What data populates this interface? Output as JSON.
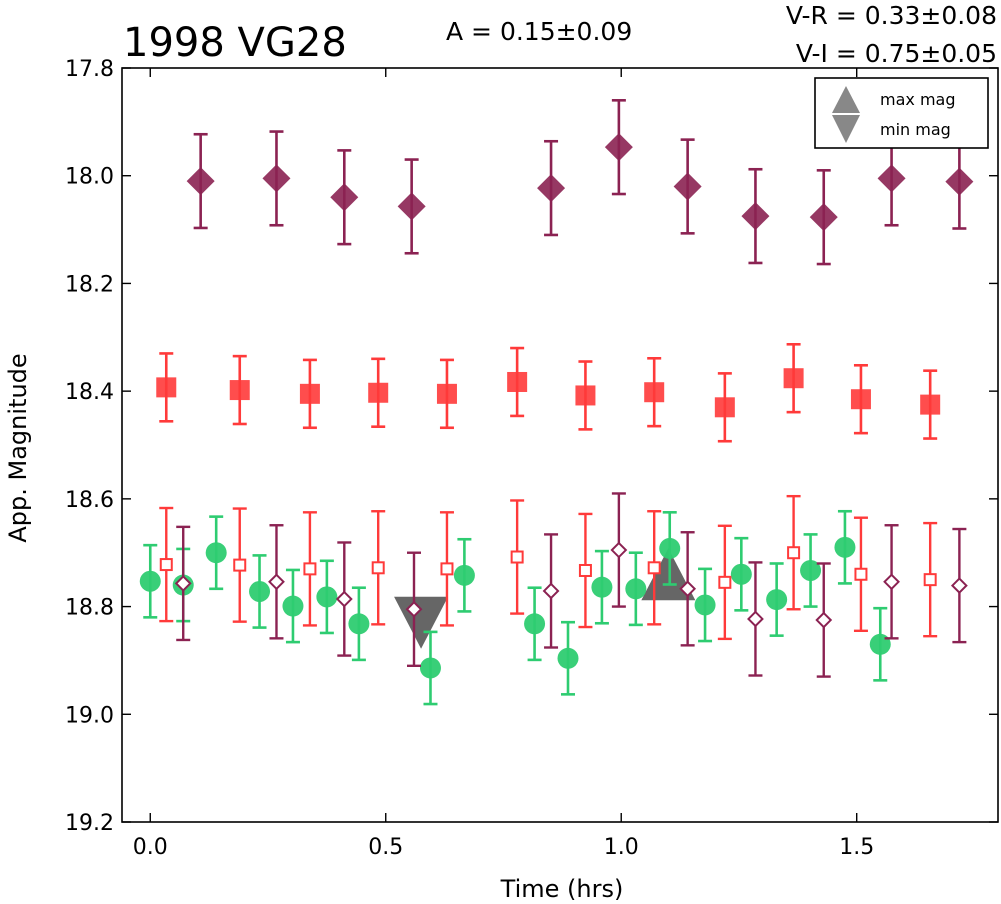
{
  "title": "1998 VG28",
  "annotations": {
    "amplitude": "A  = 0.15±0.09",
    "v_r": "V-R = 0.33±0.08",
    "v_i": "V-I  = 0.75±0.05"
  },
  "xlabel": "Time (hrs)",
  "ylabel": "App. Magnitude",
  "legend": {
    "max": "max mag",
    "min": "min mag"
  },
  "chart_data": {
    "type": "scatter",
    "title": "1998 VG28",
    "xlabel": "Time (hrs)",
    "ylabel": "App. Magnitude",
    "xlim": [
      -0.06,
      1.8
    ],
    "ylim": [
      19.2,
      17.8
    ],
    "y_inverted": true,
    "xticks": [
      "0.0",
      "0.5",
      "1.0",
      "1.5"
    ],
    "yticks": [
      "17.8",
      "18.0",
      "18.2",
      "18.4",
      "18.6",
      "18.8",
      "19.0",
      "19.2"
    ],
    "legend_position": "top-right",
    "grid": false,
    "series": [
      {
        "marker": "diamond",
        "filled": true,
        "color": "#8b2252",
        "err": 0.087,
        "x": [
          0.107,
          0.268,
          0.412,
          0.555,
          0.851,
          0.995,
          1.141,
          1.285,
          1.43,
          1.574,
          1.718
        ],
        "y": [
          18.01,
          18.005,
          18.04,
          18.057,
          18.023,
          17.947,
          18.02,
          18.075,
          18.077,
          18.005,
          18.011
        ]
      },
      {
        "marker": "square",
        "filled": true,
        "color": "#ff3a3a",
        "err": 0.063,
        "x": [
          0.034,
          0.19,
          0.339,
          0.484,
          0.63,
          0.779,
          0.924,
          1.07,
          1.22,
          1.366,
          1.509,
          1.656
        ],
        "y": [
          18.393,
          18.398,
          18.405,
          18.403,
          18.405,
          18.383,
          18.408,
          18.402,
          18.43,
          18.376,
          18.415,
          18.425
        ]
      },
      {
        "marker": "circle",
        "filled": true,
        "color": "#2ecc71",
        "err": 0.067,
        "x": [
          0.0,
          0.07,
          0.14,
          0.232,
          0.303,
          0.375,
          0.443,
          0.595,
          0.667,
          0.816,
          0.887,
          0.959,
          1.031,
          1.103,
          1.178,
          1.255,
          1.33,
          1.402,
          1.475,
          1.55
        ],
        "y": [
          18.753,
          18.76,
          18.7,
          18.772,
          18.799,
          18.782,
          18.832,
          18.914,
          18.742,
          18.832,
          18.896,
          18.764,
          18.767,
          18.692,
          18.797,
          18.74,
          18.787,
          18.733,
          18.69,
          18.87
        ]
      },
      {
        "marker": "square",
        "filled": false,
        "color": "#ff3a3a",
        "err": 0.105,
        "x": [
          0.034,
          0.19,
          0.339,
          0.484,
          0.63,
          0.779,
          0.924,
          1.07,
          1.22,
          1.366,
          1.509,
          1.656
        ],
        "y": [
          18.722,
          18.723,
          18.73,
          18.728,
          18.73,
          18.708,
          18.733,
          18.728,
          18.755,
          18.7,
          18.74,
          18.75
        ]
      },
      {
        "marker": "diamond",
        "filled": false,
        "color": "#8b2252",
        "err": 0.105,
        "x": [
          0.07,
          0.268,
          0.412,
          0.56,
          0.851,
          0.995,
          1.141,
          1.285,
          1.43,
          1.574,
          1.718
        ],
        "y": [
          18.757,
          18.754,
          18.786,
          18.805,
          18.771,
          18.695,
          18.767,
          18.823,
          18.825,
          18.754,
          18.761
        ]
      }
    ],
    "extrema": {
      "max": {
        "x": 1.1,
        "y": 18.74,
        "label": "max mag",
        "marker": "triangle-up",
        "color": "#555555"
      },
      "min": {
        "x": 0.575,
        "y": 18.83,
        "label": "min mag",
        "marker": "triangle-down",
        "color": "#555555"
      }
    }
  }
}
